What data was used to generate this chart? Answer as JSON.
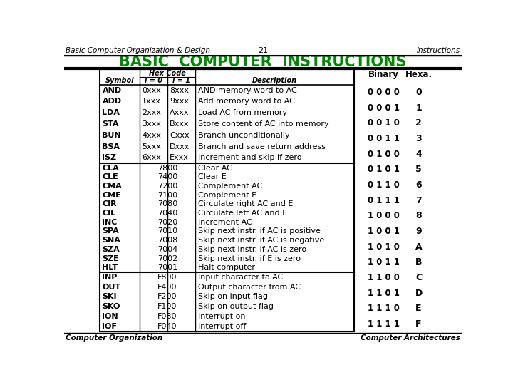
{
  "header_left": "Basic Computer Organization & Design",
  "header_center": "21",
  "header_right": "Instructions",
  "title": "BASIC  COMPUTER  INSTRUCTIONS",
  "title_color": "#008800",
  "footer_left": "Computer Organization",
  "footer_right": "Computer Architectures",
  "hex_code_label": "Hex Code",
  "binary_label": "Binary",
  "hexa_label": "Hexa.",
  "section1": [
    [
      "AND",
      "0xxx",
      "8xxx",
      "AND memory word to AC"
    ],
    [
      "ADD",
      "1xxx",
      "9xxx",
      "Add memory word to AC"
    ],
    [
      "LDA",
      "2xxx",
      "Axxx",
      "Load AC from memory"
    ],
    [
      "STA",
      "3xxx",
      "Bxxx",
      "Store content of AC into memory"
    ],
    [
      "BUN",
      "4xxx",
      "Cxxx",
      "Branch unconditionally"
    ],
    [
      "BSA",
      "5xxx",
      "Dxxx",
      "Branch and save return address"
    ],
    [
      "ISZ",
      "6xxx",
      "Exxx",
      "Increment and skip if zero"
    ]
  ],
  "section2": [
    [
      "CLA",
      "7800",
      "Clear AC"
    ],
    [
      "CLE",
      "7400",
      "Clear E"
    ],
    [
      "CMA",
      "7200",
      "Complement AC"
    ],
    [
      "CME",
      "7100",
      "Complement E"
    ],
    [
      "CIR",
      "7080",
      "Circulate right AC and E"
    ],
    [
      "CIL",
      "7040",
      "Circulate left AC and E"
    ],
    [
      "INC",
      "7020",
      "Increment AC"
    ],
    [
      "SPA",
      "7010",
      "Skip next instr. if AC is positive"
    ],
    [
      "SNA",
      "7008",
      "Skip next instr. if AC is negative"
    ],
    [
      "SZA",
      "7004",
      "Skip next instr. if AC is zero"
    ],
    [
      "SZE",
      "7002",
      "Skip next instr. if E is zero"
    ],
    [
      "HLT",
      "7001",
      "Halt computer"
    ]
  ],
  "section3": [
    [
      "INP",
      "F800",
      "Input character to AC"
    ],
    [
      "OUT",
      "F400",
      "Output character from AC"
    ],
    [
      "SKI",
      "F200",
      "Skip on input flag"
    ],
    [
      "SKO",
      "F100",
      "Skip on output flag"
    ],
    [
      "ION",
      "F080",
      "Interrupt on"
    ],
    [
      "IOF",
      "F040",
      "Interrupt off"
    ]
  ],
  "binary_hexa": [
    [
      "0 0 0 0",
      "0"
    ],
    [
      "0 0 0 1",
      "1"
    ],
    [
      "0 0 1 0",
      "2"
    ],
    [
      "0 0 1 1",
      "3"
    ],
    [
      "0 1 0 0",
      "4"
    ],
    [
      "0 1 0 1",
      "5"
    ],
    [
      "0 1 1 0",
      "6"
    ],
    [
      "0 1 1 1",
      "7"
    ],
    [
      "1 0 0 0",
      "8"
    ],
    [
      "1 0 0 1",
      "9"
    ],
    [
      "1 0 1 0",
      "A"
    ],
    [
      "1 0 1 1",
      "B"
    ],
    [
      "1 1 0 0",
      "C"
    ],
    [
      "1 1 0 1",
      "D"
    ],
    [
      "1 1 1 0",
      "E"
    ],
    [
      "1 1 1 1",
      "F"
    ]
  ],
  "bg_color": "#ffffff"
}
